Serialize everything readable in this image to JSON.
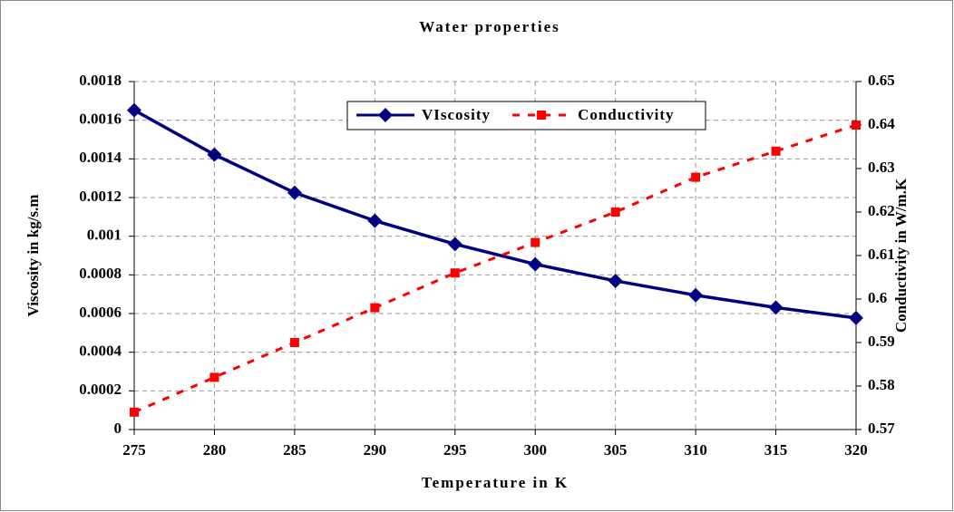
{
  "chart_data": {
    "type": "line",
    "title": "Water properties",
    "xlabel": "Temperature in K",
    "ylabel": "Viscosity in kg/s.m",
    "y2label": "Conductivity in W/m.K",
    "x": [
      275,
      280,
      285,
      290,
      295,
      300,
      305,
      310,
      315,
      320
    ],
    "xlim": [
      275,
      320
    ],
    "xticks": [
      275,
      280,
      285,
      290,
      295,
      300,
      305,
      310,
      315,
      320
    ],
    "ylim": [
      0,
      0.0018
    ],
    "yticks": [
      0,
      0.0002,
      0.0004,
      0.0006,
      0.0008,
      0.001,
      0.0012,
      0.0014,
      0.0016,
      0.0018
    ],
    "y2lim": [
      0.57,
      0.65
    ],
    "y2ticks": [
      0.57,
      0.58,
      0.59,
      0.6,
      0.61,
      0.62,
      0.63,
      0.64,
      0.65
    ],
    "grid": true,
    "legend": "top",
    "series": [
      {
        "name": "VIscosity",
        "color": "#000080",
        "marker": "diamond",
        "dash": "solid",
        "values": [
          0.001652,
          0.001422,
          0.001225,
          0.00108,
          0.000959,
          0.000855,
          0.000769,
          0.000695,
          0.000631,
          0.000577
        ]
      },
      {
        "name": "Conductivity",
        "color": "#ff0000",
        "marker": "square",
        "dash": "dashed",
        "axis": "y2",
        "values": [
          0.574,
          0.582,
          0.59,
          0.598,
          0.606,
          0.613,
          0.62,
          0.628,
          0.634,
          0.64
        ]
      }
    ]
  }
}
